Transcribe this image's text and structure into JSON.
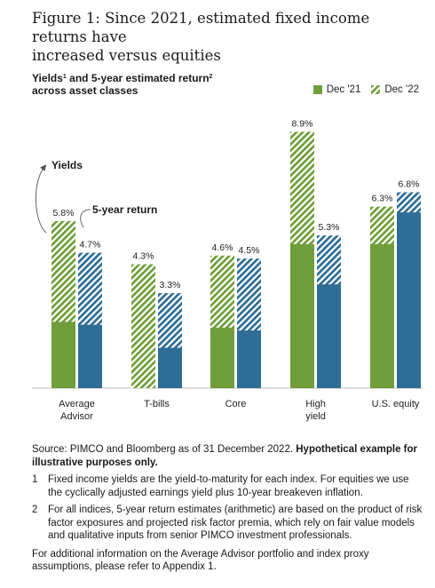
{
  "figure": {
    "title_line1": "Figure 1: Since 2021, estimated fixed income returns have",
    "title_line2": "increased versus equities"
  },
  "chart_head": {
    "line1_a": "Yields",
    "line1_sup1": "1",
    "line1_b": " and 5-year estimated return",
    "line1_sup2": "2",
    "line2": "across asset classes"
  },
  "legend": {
    "dec21": "Dec '21",
    "dec22": "Dec '22"
  },
  "colors": {
    "green": "#6f9e3a",
    "green_light": "#b8d08f",
    "blue": "#2e6d96",
    "blue_light": "#8fb5cf",
    "axis": "#bcbcbc"
  },
  "chart_data": {
    "type": "bar",
    "categories": [
      "Average Advisor",
      "T-bills",
      "Core",
      "High yield",
      "U.S. equity"
    ],
    "category_labels": [
      [
        "Average",
        "Advisor"
      ],
      [
        "T-bills"
      ],
      [
        "Core"
      ],
      [
        "High",
        "yield"
      ],
      [
        "U.S. equity"
      ]
    ],
    "ylim": [
      0,
      10
    ],
    "series": [
      {
        "name": "Yields",
        "dec21": [
          2.3,
          0.0,
          2.1,
          5.0,
          5.0
        ],
        "dec22": [
          5.8,
          4.3,
          4.6,
          8.9,
          6.3
        ],
        "labels": [
          "5.8%",
          "4.3%",
          "4.6%",
          "8.9%",
          "6.3%"
        ]
      },
      {
        "name": "5-year return",
        "dec21": [
          2.2,
          1.4,
          2.0,
          3.6,
          6.1
        ],
        "dec22": [
          4.7,
          3.3,
          4.5,
          5.3,
          6.8
        ],
        "labels": [
          "4.7%",
          "3.3%",
          "4.5%",
          "5.3%",
          "6.8%"
        ]
      }
    ],
    "annotations": {
      "yields": "Yields",
      "five_year": "5-year return"
    }
  },
  "footnotes": {
    "source_a": "Source: PIMCO and Bloomberg as of 31 December 2022. ",
    "source_b": "Hypothetical example for illustrative purposes only.",
    "fn1_num": "1",
    "fn1_text": "Fixed income yields are the yield-to-maturity for each index. For equities we use the cyclically adjusted earnings yield plus 10-year breakeven inflation.",
    "fn2_num": "2",
    "fn2_text": "For all indices, 5-year return estimates (arithmetic) are based on the product of risk factor exposures and projected risk factor premia, which rely on fair value models and qualitative inputs from senior PIMCO investment professionals.",
    "more": "For additional information on the Average Advisor portfolio and index proxy assumptions, please refer to Appendix 1."
  }
}
